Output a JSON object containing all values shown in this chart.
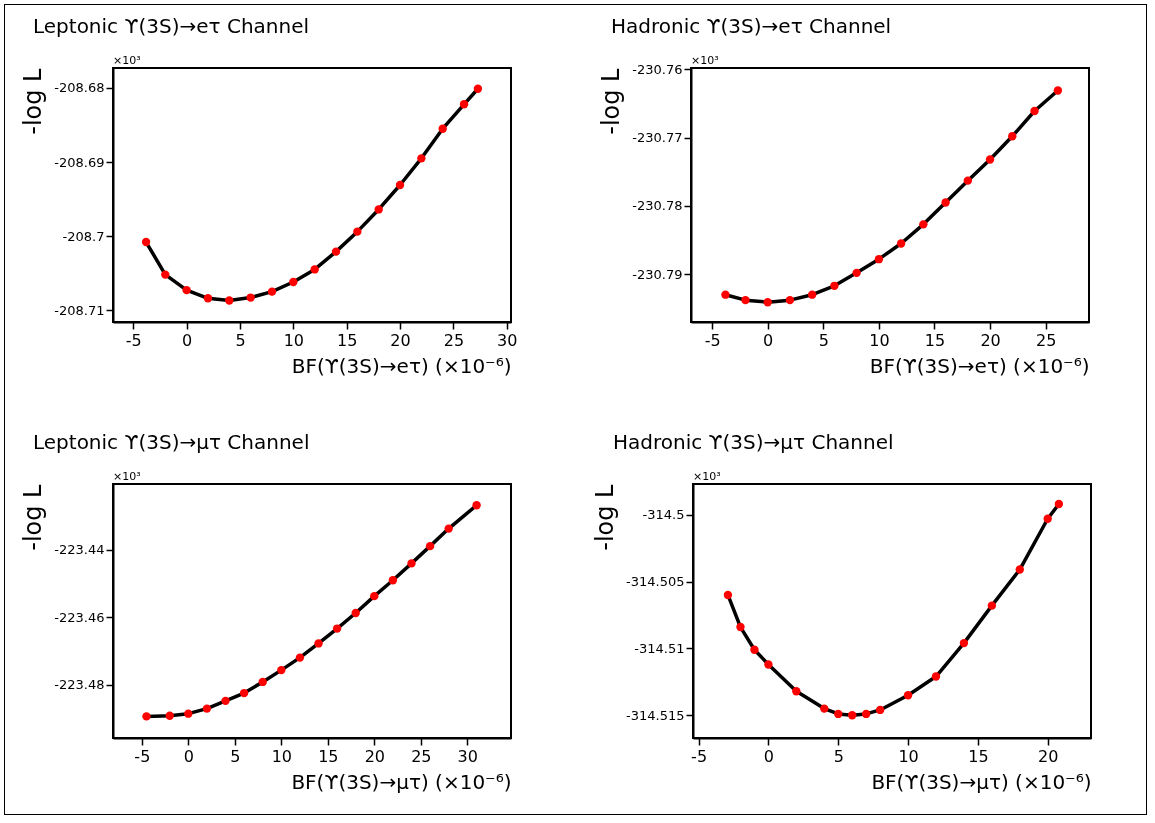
{
  "chart_data": [
    {
      "type": "line",
      "title": "Leptonic ϒ(3S)→eτ Channel",
      "xlabel": "BF(ϒ(3S)→eτ)  (×10⁻⁶)",
      "ylabel": "-log L",
      "annotations": [
        "×10³"
      ],
      "xlim": [
        -6.9,
        30.4
      ],
      "ylim": [
        -208.7116,
        -208.6773
      ],
      "xticks": [
        -5,
        0,
        5,
        10,
        15,
        20,
        25,
        30
      ],
      "yticks": [
        -208.71,
        -208.7,
        -208.69,
        -208.68
      ],
      "series": [
        {
          "type": "scatter",
          "marker": "circle",
          "color": "#ff0000",
          "x": [
            -3.8,
            -2,
            0,
            2,
            4,
            6,
            8,
            10,
            12,
            14,
            16,
            18,
            20,
            22,
            24,
            26,
            27.3
          ],
          "values": [
            -208.7008,
            -208.7052,
            -208.7073,
            -208.7084,
            -208.7087,
            -208.7083,
            -208.7075,
            -208.7062,
            -208.7045,
            -208.7021,
            -208.6994,
            -208.6964,
            -208.6931,
            -208.6895,
            -208.6855,
            -208.6822,
            -208.6801
          ]
        },
        {
          "type": "line",
          "color": "#000000",
          "x": [
            -3.8,
            -2,
            0,
            2,
            4,
            6,
            8,
            10,
            12,
            14,
            16,
            18,
            20,
            22,
            24,
            26,
            27.3
          ],
          "values": [
            -208.7008,
            -208.7052,
            -208.7073,
            -208.7084,
            -208.7087,
            -208.7083,
            -208.7075,
            -208.7062,
            -208.7045,
            -208.7021,
            -208.6994,
            -208.6964,
            -208.6931,
            -208.6895,
            -208.6855,
            -208.6822,
            -208.6801
          ]
        }
      ]
    },
    {
      "type": "line",
      "title": "Hadronic ϒ(3S)→eτ Channel",
      "xlabel": "BF(ϒ(3S)→eτ)  (×10⁻⁶)",
      "ylabel": "-log L",
      "annotations": [
        "×10³"
      ],
      "xlim": [
        -6.9,
        28.9
      ],
      "ylim": [
        -230.797,
        -230.7598
      ],
      "xticks": [
        -5,
        0,
        5,
        10,
        15,
        20,
        25
      ],
      "yticks": [
        -230.79,
        -230.78,
        -230.77,
        -230.76
      ],
      "series": [
        {
          "type": "scatter",
          "marker": "circle",
          "color": "#ff0000",
          "x": [
            -3.8,
            -2,
            0,
            2,
            4,
            6,
            8,
            10,
            12,
            14,
            16,
            18,
            20,
            22,
            24,
            26.1
          ],
          "values": [
            -230.793,
            -230.7938,
            -230.7941,
            -230.7938,
            -230.793,
            -230.7917,
            -230.7898,
            -230.7878,
            -230.7855,
            -230.7827,
            -230.7795,
            -230.7763,
            -230.7732,
            -230.7698,
            -230.7661,
            -230.7631
          ]
        },
        {
          "type": "line",
          "color": "#000000",
          "x": [
            -3.8,
            -2,
            0,
            2,
            4,
            6,
            8,
            10,
            12,
            14,
            16,
            18,
            20,
            22,
            24,
            26.1
          ],
          "values": [
            -230.793,
            -230.7938,
            -230.7941,
            -230.7938,
            -230.793,
            -230.7917,
            -230.7898,
            -230.7878,
            -230.7855,
            -230.7827,
            -230.7795,
            -230.7763,
            -230.7732,
            -230.7698,
            -230.7661,
            -230.7631
          ]
        }
      ]
    },
    {
      "type": "line",
      "title": "Leptonic ϒ(3S)→μτ Channel",
      "xlabel": "BF(ϒ(3S)→μτ)  (×10⁻⁶)",
      "ylabel": "-log L",
      "annotations": [
        "×10³"
      ],
      "xlim": [
        -8.1,
        34.7
      ],
      "ylim": [
        -223.4958,
        -223.4206
      ],
      "xticks": [
        -5,
        0,
        5,
        10,
        15,
        20,
        25,
        30
      ],
      "yticks": [
        -223.48,
        -223.46,
        -223.44
      ],
      "series": [
        {
          "type": "scatter",
          "marker": "circle",
          "color": "#ff0000",
          "x": [
            -4.5,
            -2,
            0,
            2,
            4,
            6,
            8,
            10,
            12,
            14,
            16,
            18,
            20,
            22,
            24,
            26,
            28,
            31
          ],
          "values": [
            -223.4894,
            -223.4892,
            -223.4886,
            -223.4871,
            -223.4848,
            -223.4825,
            -223.4792,
            -223.4757,
            -223.472,
            -223.4678,
            -223.4634,
            -223.4588,
            -223.4538,
            -223.4491,
            -223.4441,
            -223.439,
            -223.4338,
            -223.4269
          ]
        },
        {
          "type": "line",
          "color": "#000000",
          "x": [
            -4.5,
            -2,
            0,
            2,
            4,
            6,
            8,
            10,
            12,
            14,
            16,
            18,
            20,
            22,
            24,
            26,
            28,
            31
          ],
          "values": [
            -223.4894,
            -223.4892,
            -223.4886,
            -223.4871,
            -223.4848,
            -223.4825,
            -223.4792,
            -223.4757,
            -223.472,
            -223.4678,
            -223.4634,
            -223.4588,
            -223.4538,
            -223.4491,
            -223.4441,
            -223.439,
            -223.4338,
            -223.4269
          ]
        }
      ]
    },
    {
      "type": "line",
      "title": "Hadronic ϒ(3S)→μτ Channel",
      "xlabel": "BF(ϒ(3S)→μτ)  (×10⁻⁶)",
      "ylabel": "-log L",
      "annotations": [
        "×10³"
      ],
      "xlim": [
        -5.4,
        23.1
      ],
      "ylim": [
        -314.5167,
        -314.4977
      ],
      "xticks": [
        -5,
        0,
        5,
        10,
        15,
        20
      ],
      "yticks": [
        -314.515,
        -314.51,
        -314.505,
        -314.5
      ],
      "series": [
        {
          "type": "scatter",
          "marker": "circle",
          "color": "#ff0000",
          "x": [
            -2.9,
            -2,
            -1,
            0,
            2,
            4,
            5,
            6,
            7,
            8,
            10,
            12,
            14,
            16,
            18,
            20,
            20.8
          ],
          "values": [
            -314.506,
            -314.5084,
            -314.5101,
            -314.5112,
            -314.5132,
            -314.5145,
            -314.5149,
            -314.515,
            -314.5149,
            -314.5146,
            -314.5135,
            -314.5121,
            -314.5096,
            -314.5068,
            -314.5041,
            -314.5003,
            -314.4992
          ]
        },
        {
          "type": "line",
          "color": "#000000",
          "x": [
            -2.9,
            -2,
            -1,
            0,
            2,
            4,
            5,
            6,
            7,
            8,
            10,
            12,
            14,
            16,
            18,
            20,
            20.8
          ],
          "values": [
            -314.506,
            -314.5084,
            -314.5101,
            -314.5112,
            -314.5132,
            -314.5145,
            -314.5149,
            -314.515,
            -314.5149,
            -314.5146,
            -314.5135,
            -314.5121,
            -314.5096,
            -314.5068,
            -314.5041,
            -314.5003,
            -314.4992
          ]
        }
      ]
    }
  ]
}
